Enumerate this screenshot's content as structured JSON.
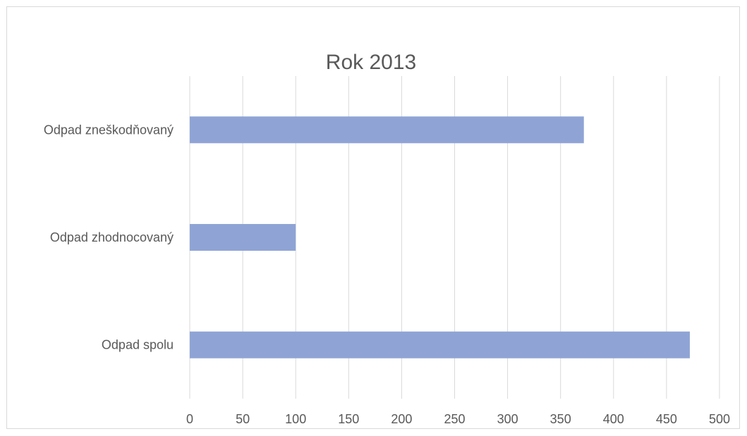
{
  "chart_data": {
    "type": "bar",
    "orientation": "horizontal",
    "title": "Rok 2013",
    "categories": [
      "Odpad zneškodňovaný",
      "Odpad zhodnocovaný",
      "Odpad spolu"
    ],
    "values": [
      372,
      100,
      472
    ],
    "xlim": [
      0,
      500
    ],
    "xticks": [
      0,
      50,
      100,
      150,
      200,
      250,
      300,
      350,
      400,
      450,
      500
    ],
    "grid": "vertical",
    "legend": "none",
    "bar_color": "#8fa4d5",
    "grid_color": "#d9d9d9"
  }
}
